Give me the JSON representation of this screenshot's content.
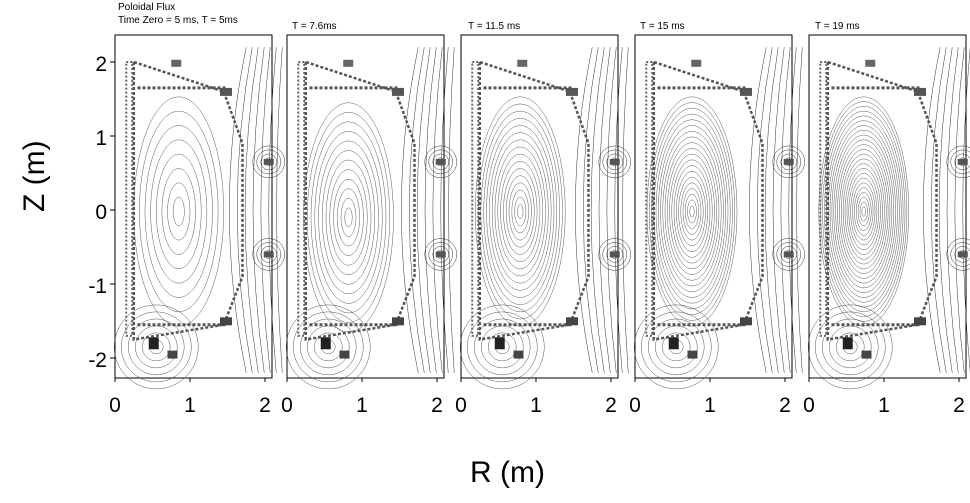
{
  "chart_data": {
    "type": "contour",
    "title_lines": [
      "Poloidal Flux",
      "Time Zero = 5 ms, T = 5ms"
    ],
    "xlabel": "R (m)",
    "ylabel": "Z (m)",
    "xlim": [
      0,
      2.3
    ],
    "ylim": [
      -2.2,
      2.3
    ],
    "x_ticks": [
      0,
      1,
      2
    ],
    "y_ticks": [
      2,
      1,
      0,
      -1,
      -2
    ],
    "panels": [
      {
        "label": "",
        "time_ms": 5
      },
      {
        "label": "T = 7.6ms",
        "time_ms": 7.6
      },
      {
        "label": "T = 11.5 ms",
        "time_ms": 11.5
      },
      {
        "label": "T = 15 ms",
        "time_ms": 15
      },
      {
        "label": "T = 19 ms",
        "time_ms": 19
      }
    ],
    "grid": false,
    "line_color": "#333333"
  }
}
